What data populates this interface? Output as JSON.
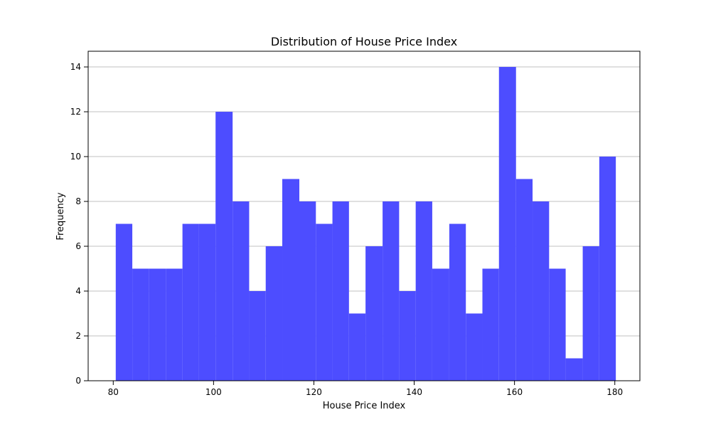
{
  "chart_data": {
    "type": "bar",
    "title": "Distribution of House Price Index",
    "xlabel": "House Price Index",
    "ylabel": "Frequency",
    "xlim": [
      75,
      185
    ],
    "ylim": [
      0,
      14.7
    ],
    "bins": [
      {
        "start": 80.5,
        "end": 83.8,
        "count": 7
      },
      {
        "start": 83.8,
        "end": 87.1,
        "count": 5
      },
      {
        "start": 87.1,
        "end": 90.5,
        "count": 5
      },
      {
        "start": 90.5,
        "end": 93.8,
        "count": 5
      },
      {
        "start": 93.8,
        "end": 97.1,
        "count": 7
      },
      {
        "start": 97.1,
        "end": 100.4,
        "count": 7
      },
      {
        "start": 100.4,
        "end": 103.8,
        "count": 12
      },
      {
        "start": 103.8,
        "end": 107.1,
        "count": 8
      },
      {
        "start": 107.1,
        "end": 110.4,
        "count": 4
      },
      {
        "start": 110.4,
        "end": 113.7,
        "count": 6
      },
      {
        "start": 113.7,
        "end": 117.1,
        "count": 9
      },
      {
        "start": 117.1,
        "end": 120.4,
        "count": 8
      },
      {
        "start": 120.4,
        "end": 123.7,
        "count": 7
      },
      {
        "start": 123.7,
        "end": 127.0,
        "count": 8
      },
      {
        "start": 127.0,
        "end": 130.3,
        "count": 3
      },
      {
        "start": 130.3,
        "end": 133.7,
        "count": 6
      },
      {
        "start": 133.7,
        "end": 137.0,
        "count": 8
      },
      {
        "start": 137.0,
        "end": 140.3,
        "count": 4
      },
      {
        "start": 140.3,
        "end": 143.6,
        "count": 8
      },
      {
        "start": 143.6,
        "end": 147.0,
        "count": 5
      },
      {
        "start": 147.0,
        "end": 150.3,
        "count": 7
      },
      {
        "start": 150.3,
        "end": 153.6,
        "count": 3
      },
      {
        "start": 153.6,
        "end": 156.9,
        "count": 5
      },
      {
        "start": 156.9,
        "end": 160.3,
        "count": 14
      },
      {
        "start": 160.3,
        "end": 163.6,
        "count": 9
      },
      {
        "start": 163.6,
        "end": 166.9,
        "count": 8
      },
      {
        "start": 166.9,
        "end": 170.2,
        "count": 5
      },
      {
        "start": 170.2,
        "end": 173.6,
        "count": 1
      },
      {
        "start": 173.6,
        "end": 176.9,
        "count": 6
      },
      {
        "start": 176.9,
        "end": 180.2,
        "count": 10
      }
    ],
    "x_ticks": [
      80,
      100,
      120,
      140,
      160,
      180
    ],
    "x_tick_labels": [
      "80",
      "100",
      "120",
      "140",
      "160",
      "180"
    ],
    "y_ticks": [
      0,
      2,
      4,
      6,
      8,
      10,
      12,
      14
    ],
    "y_tick_labels": [
      "0",
      "2",
      "4",
      "6",
      "8",
      "10",
      "12",
      "14"
    ],
    "grid": "y",
    "bar_color": "#4d4dff",
    "grid_color": "#c0c0c0",
    "axis_color": "#000000"
  }
}
